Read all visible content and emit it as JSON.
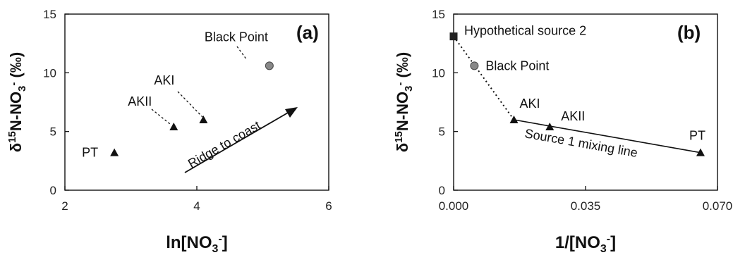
{
  "chart_data": [
    {
      "type": "scatter",
      "panel_label": "(a)",
      "xlabel": "ln[NO3-]",
      "ylabel": "δ15N-NO3- (‰)",
      "xlim": [
        2,
        6
      ],
      "ylim": [
        0,
        15
      ],
      "xticks": [
        "2",
        "4",
        "6"
      ],
      "yticks": [
        "0",
        "5",
        "10",
        "15"
      ],
      "points": [
        {
          "label": "PT",
          "x": 2.75,
          "y": 3.2,
          "marker": "triangle"
        },
        {
          "label": "AKII",
          "x": 3.65,
          "y": 5.4,
          "marker": "triangle"
        },
        {
          "label": "AKI",
          "x": 4.1,
          "y": 6.0,
          "marker": "triangle"
        },
        {
          "label": "Black Point",
          "x": 5.1,
          "y": 10.6,
          "marker": "circle"
        }
      ],
      "annotations": [
        "Ridge to coast"
      ]
    },
    {
      "type": "scatter",
      "panel_label": "(b)",
      "xlabel": "1/[NO3-]",
      "ylabel": "δ15N-NO3- (‰)",
      "xlim": [
        0.0,
        0.07
      ],
      "ylim": [
        0,
        15
      ],
      "xticks": [
        "0.000",
        "0.035",
        "0.070"
      ],
      "yticks": [
        "0",
        "5",
        "10",
        "15"
      ],
      "points": [
        {
          "label": "Hypothetical source 2",
          "x": 0.0,
          "y": 13.1,
          "marker": "square"
        },
        {
          "label": "Black Point",
          "x": 0.0055,
          "y": 10.6,
          "marker": "circle"
        },
        {
          "label": "AKI",
          "x": 0.016,
          "y": 6.0,
          "marker": "triangle"
        },
        {
          "label": "AKII",
          "x": 0.0255,
          "y": 5.4,
          "marker": "triangle"
        },
        {
          "label": "PT",
          "x": 0.0655,
          "y": 3.2,
          "marker": "triangle"
        }
      ],
      "lines": [
        {
          "style": "dotted",
          "from": "Hypothetical source 2",
          "to": "AKI"
        },
        {
          "style": "solid",
          "from": "AKI",
          "to": "PT",
          "label": "Source 1 mixing line"
        }
      ]
    }
  ]
}
